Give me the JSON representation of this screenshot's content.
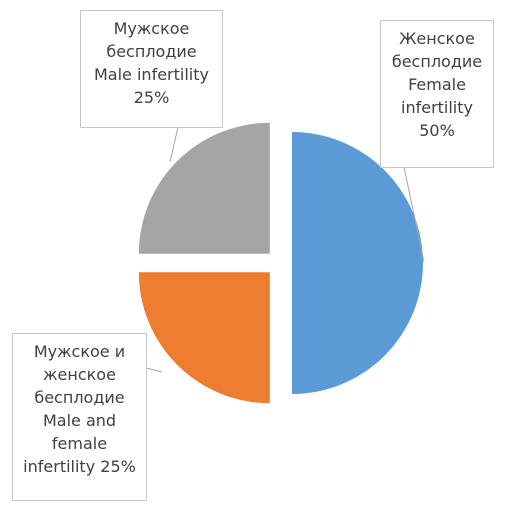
{
  "chart_data": {
    "type": "pie",
    "categories": [
      "Женское бесплодие Female infertility",
      "Мужское и женское бесплодие Male and female infertility",
      "Мужское бесплодие Male infertility"
    ],
    "values": [
      50,
      25,
      25
    ],
    "value_labels": [
      "50%",
      "25%",
      "25%"
    ],
    "colors": [
      "#5b9bd5",
      "#ed7d31",
      "#a5a5a5"
    ]
  }
}
